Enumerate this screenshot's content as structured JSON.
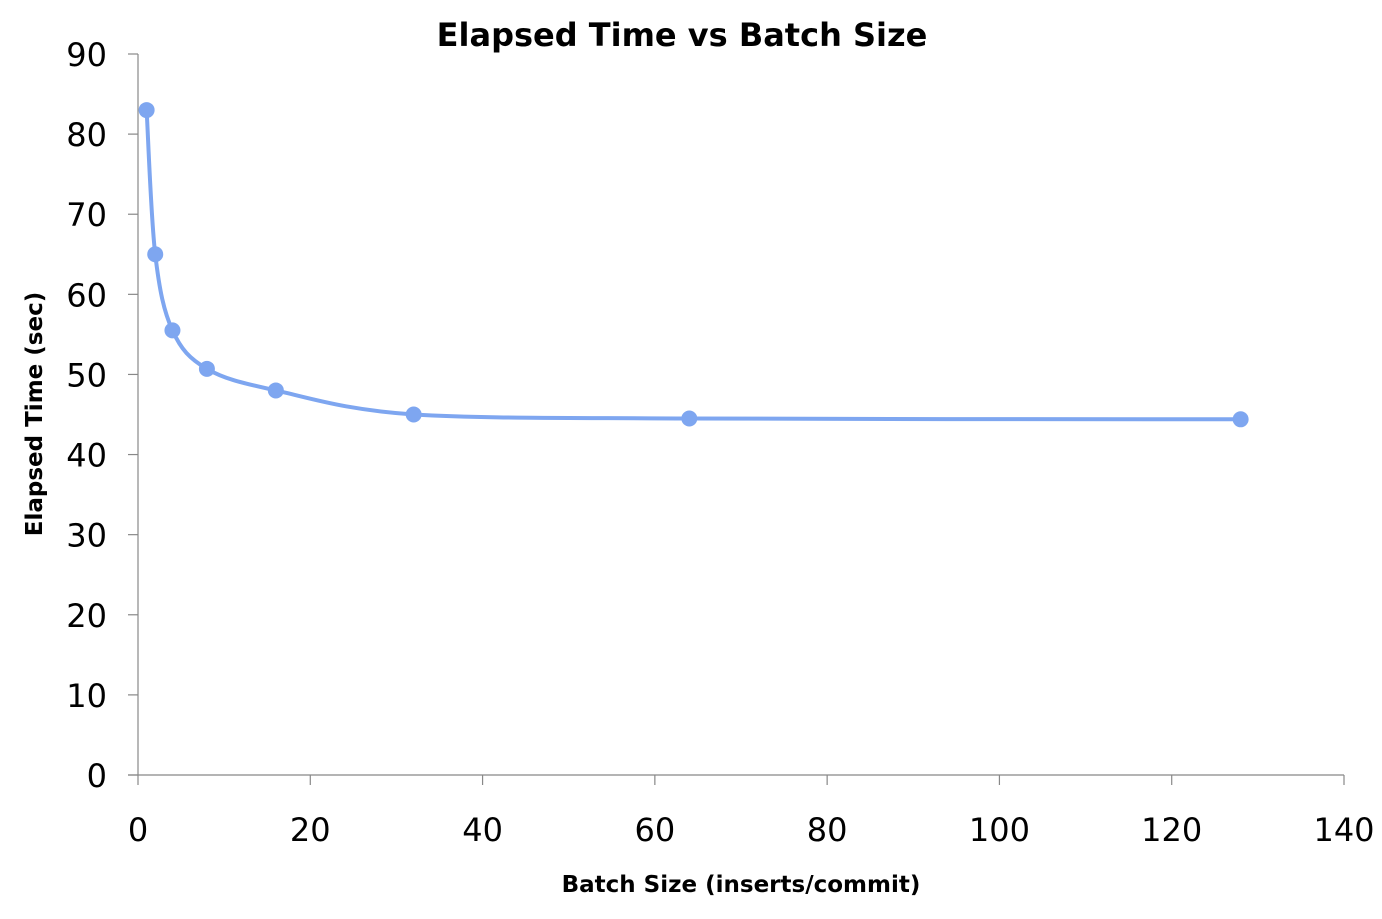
{
  "chart_data": {
    "type": "scatter",
    "title": "Elapsed Time vs Batch Size",
    "xlabel": "Batch Size (inserts/commit)",
    "ylabel": "Elapsed Time (sec)",
    "xlim": [
      0,
      140
    ],
    "ylim": [
      0,
      90
    ],
    "x_ticks": [
      0,
      20,
      40,
      60,
      80,
      100,
      120,
      140
    ],
    "y_ticks": [
      0,
      10,
      20,
      30,
      40,
      50,
      60,
      70,
      80,
      90
    ],
    "grid": false,
    "legend": "none",
    "line_style": "smooth",
    "series": [
      {
        "x": [
          1,
          2,
          4,
          8,
          16,
          32,
          64,
          128
        ],
        "y": [
          83,
          65,
          55.5,
          50.7,
          48,
          45,
          44.5,
          44.4
        ],
        "color": "#7ea6f0"
      }
    ]
  }
}
